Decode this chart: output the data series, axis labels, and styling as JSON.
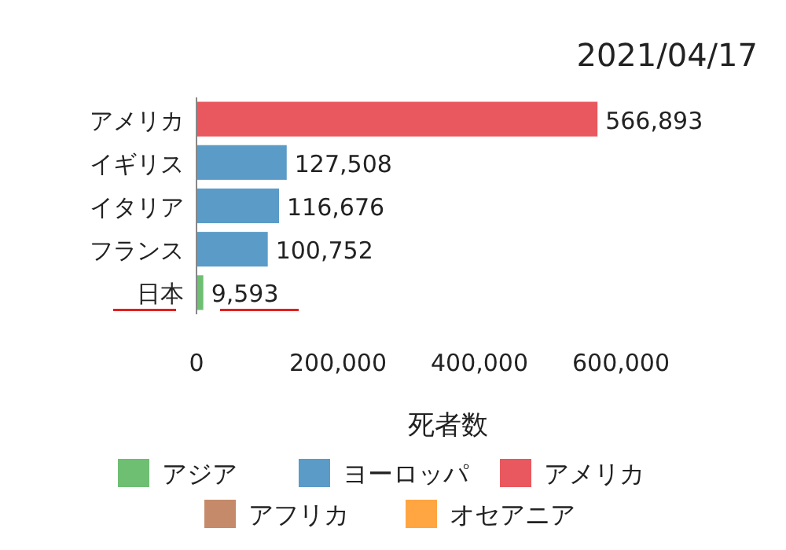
{
  "chart_data": {
    "type": "bar",
    "orientation": "horizontal",
    "title": "2021/04/17",
    "xlabel": "死者数",
    "legend": "bottom",
    "categories": [
      "アメリカ",
      "イギリス",
      "イタリア",
      "フランス",
      "日本"
    ],
    "series": [
      {
        "name": "アジア",
        "color": "#6fbf73",
        "values": [
          null,
          null,
          null,
          null,
          9593
        ],
        "value_labels": [
          null,
          null,
          null,
          null,
          "9,593"
        ]
      },
      {
        "name": "ヨーロッパ",
        "color": "#5b9bc8",
        "values": [
          null,
          127508,
          116676,
          100752,
          null
        ],
        "value_labels": [
          null,
          "127,508",
          "116,676",
          "100,752",
          null
        ]
      },
      {
        "name": "アメリカ",
        "color": "#e8585e",
        "values": [
          566893,
          null,
          null,
          null,
          null
        ],
        "value_labels": [
          "566,893",
          null,
          null,
          null,
          null
        ]
      },
      {
        "name": "アフリカ",
        "color": "#c48a69",
        "values": [
          null,
          null,
          null,
          null,
          null
        ]
      },
      {
        "name": "オセアニア",
        "color": "#ffa542",
        "values": [
          null,
          null,
          null,
          null,
          null
        ]
      }
    ],
    "xlim": [
      0,
      600000
    ],
    "xticks": [
      {
        "value": 0,
        "label": "0"
      },
      {
        "value": 200000,
        "label": "200,000"
      },
      {
        "value": 400000,
        "label": "400,000"
      },
      {
        "value": 600000,
        "label": "600,000"
      }
    ]
  }
}
